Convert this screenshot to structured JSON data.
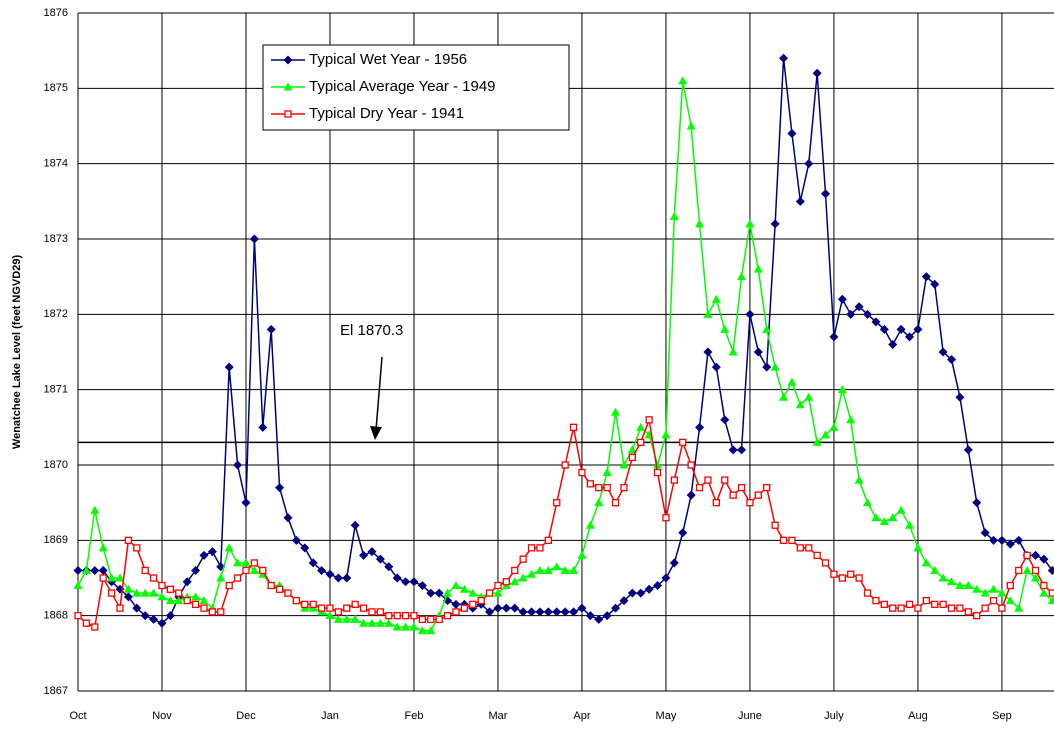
{
  "chart_data": {
    "type": "line",
    "y_label": "Wenatchee Lake Level (feet NGVD29)",
    "annotation": "El 1870.3",
    "hline": 1870.3,
    "xlim": [
      0,
      11.62
    ],
    "ylim": [
      1867,
      1876
    ],
    "yticks": [
      1867,
      1868,
      1869,
      1870,
      1871,
      1872,
      1873,
      1874,
      1875,
      1876
    ],
    "xticks": [
      {
        "value": 0,
        "label": "Oct"
      },
      {
        "value": 1,
        "label": "Nov"
      },
      {
        "value": 2,
        "label": "Dec"
      },
      {
        "value": 3,
        "label": "Jan"
      },
      {
        "value": 4,
        "label": "Feb"
      },
      {
        "value": 5,
        "label": "Mar"
      },
      {
        "value": 6,
        "label": "Apr"
      },
      {
        "value": 7,
        "label": "May"
      },
      {
        "value": 8,
        "label": "June"
      },
      {
        "value": 9,
        "label": "July"
      },
      {
        "value": 10,
        "label": "Aug"
      },
      {
        "value": 11,
        "label": "Sep"
      }
    ],
    "grid": true,
    "legend": "top-left",
    "x": [
      0,
      0.1,
      0.2,
      0.3,
      0.4,
      0.5,
      0.6,
      0.7,
      0.8,
      0.9,
      1,
      1.1,
      1.2,
      1.3,
      1.4,
      1.5,
      1.6,
      1.7,
      1.8,
      1.9,
      2,
      2.1,
      2.2,
      2.3,
      2.4,
      2.5,
      2.6,
      2.7,
      2.8,
      2.9,
      3,
      3.1,
      3.2,
      3.3,
      3.4,
      3.5,
      3.6,
      3.7,
      3.8,
      3.9,
      4,
      4.1,
      4.2,
      4.3,
      4.4,
      4.5,
      4.6,
      4.7,
      4.8,
      4.9,
      5,
      5.1,
      5.2,
      5.3,
      5.4,
      5.5,
      5.6,
      5.7,
      5.8,
      5.9,
      6,
      6.1,
      6.2,
      6.3,
      6.4,
      6.5,
      6.6,
      6.7,
      6.8,
      6.9,
      7,
      7.1,
      7.2,
      7.3,
      7.4,
      7.5,
      7.6,
      7.7,
      7.8,
      7.9,
      8,
      8.1,
      8.2,
      8.3,
      8.4,
      8.5,
      8.6,
      8.7,
      8.8,
      8.9,
      9,
      9.1,
      9.2,
      9.3,
      9.4,
      9.5,
      9.6,
      9.7,
      9.8,
      9.9,
      10,
      10.1,
      10.2,
      10.3,
      10.4,
      10.5,
      10.6,
      10.7,
      10.8,
      10.9,
      11,
      11.1,
      11.2,
      11.3,
      11.4,
      11.5,
      11.6
    ],
    "series": [
      {
        "name": "Typical Wet Year - 1956",
        "color": "#000080",
        "marker": "diamond",
        "values": [
          1868.6,
          1868.6,
          1868.6,
          1868.6,
          1868.45,
          1868.35,
          1868.25,
          1868.1,
          1868.0,
          1867.95,
          1867.9,
          1868.0,
          1868.25,
          1868.45,
          1868.6,
          1868.8,
          1868.85,
          1868.65,
          1871.3,
          1870.0,
          1869.5,
          1873.0,
          1870.5,
          1871.8,
          1869.7,
          1869.3,
          1869.0,
          1868.9,
          1868.7,
          1868.6,
          1868.55,
          1868.5,
          1868.5,
          1869.2,
          1868.8,
          1868.85,
          1868.75,
          1868.65,
          1868.5,
          1868.45,
          1868.45,
          1868.4,
          1868.3,
          1868.3,
          1868.2,
          1868.15,
          1868.15,
          1868.1,
          1868.15,
          1868.05,
          1868.1,
          1868.1,
          1868.1,
          1868.05,
          1868.05,
          1868.05,
          1868.05,
          1868.05,
          1868.05,
          1868.05,
          1868.1,
          1868.0,
          1867.95,
          1868.0,
          1868.1,
          1868.2,
          1868.3,
          1868.3,
          1868.35,
          1868.4,
          1868.5,
          1868.7,
          1869.1,
          1869.6,
          1870.5,
          1871.5,
          1871.3,
          1870.6,
          1870.2,
          1870.2,
          1872.0,
          1871.5,
          1871.3,
          1873.2,
          1875.4,
          1874.4,
          1873.5,
          1874.0,
          1875.2,
          1873.6,
          1871.7,
          1872.2,
          1872.0,
          1872.1,
          1872.0,
          1871.9,
          1871.8,
          1871.6,
          1871.8,
          1871.7,
          1871.8,
          1872.5,
          1872.4,
          1871.5,
          1871.4,
          1870.9,
          1870.2,
          1869.5,
          1869.1,
          1869.0,
          1869.0,
          1868.95,
          1869.0,
          1868.8,
          1868.8,
          1868.75,
          1868.6
        ]
      },
      {
        "name": "Typical Average Year - 1949",
        "color": "#00ff00",
        "marker": "triangle",
        "values": [
          1868.4,
          1868.6,
          1869.4,
          1868.9,
          1868.5,
          1868.5,
          1868.35,
          1868.3,
          1868.3,
          1868.3,
          1868.25,
          1868.2,
          1868.2,
          1868.25,
          1868.25,
          1868.2,
          1868.1,
          1868.5,
          1868.9,
          1868.7,
          1868.7,
          1868.6,
          1868.55,
          1868.4,
          1868.4,
          1868.3,
          1868.2,
          1868.1,
          1868.1,
          1868.05,
          1868.0,
          1867.95,
          1867.95,
          1867.95,
          1867.9,
          1867.9,
          1867.9,
          1867.9,
          1867.85,
          1867.85,
          1867.85,
          1867.8,
          1867.8,
          1868.0,
          1868.3,
          1868.4,
          1868.35,
          1868.3,
          1868.25,
          1868.3,
          1868.3,
          1868.4,
          1868.45,
          1868.5,
          1868.55,
          1868.6,
          1868.6,
          1868.65,
          1868.6,
          1868.6,
          1868.8,
          1869.2,
          1869.5,
          1869.9,
          1870.7,
          1870.0,
          1870.2,
          1870.5,
          1870.4,
          1870.0,
          1870.4,
          1873.3,
          1875.1,
          1874.5,
          1873.2,
          1872.0,
          1872.2,
          1871.8,
          1871.5,
          1872.5,
          1873.2,
          1872.6,
          1871.8,
          1871.3,
          1870.9,
          1871.1,
          1870.8,
          1870.9,
          1870.3,
          1870.4,
          1870.5,
          1871.0,
          1870.6,
          1869.8,
          1869.5,
          1869.3,
          1869.25,
          1869.3,
          1869.4,
          1869.2,
          1868.9,
          1868.7,
          1868.6,
          1868.5,
          1868.45,
          1868.4,
          1868.4,
          1868.35,
          1868.3,
          1868.35,
          1868.3,
          1868.2,
          1868.1,
          1868.6,
          1868.5,
          1868.3,
          1868.2
        ]
      },
      {
        "name": "Typical Dry Year - 1941",
        "color": "#ff0000",
        "marker": "square",
        "values": [
          1868.0,
          1867.9,
          1867.85,
          1868.5,
          1868.3,
          1868.1,
          1869.0,
          1868.9,
          1868.6,
          1868.5,
          1868.4,
          1868.35,
          1868.3,
          1868.2,
          1868.15,
          1868.1,
          1868.05,
          1868.05,
          1868.4,
          1868.5,
          1868.6,
          1868.7,
          1868.6,
          1868.4,
          1868.35,
          1868.3,
          1868.2,
          1868.15,
          1868.15,
          1868.1,
          1868.1,
          1868.05,
          1868.1,
          1868.15,
          1868.1,
          1868.05,
          1868.05,
          1868.0,
          1868.0,
          1868.0,
          1868.0,
          1867.95,
          1867.95,
          1867.95,
          1868.0,
          1868.05,
          1868.1,
          1868.15,
          1868.2,
          1868.3,
          1868.4,
          1868.45,
          1868.6,
          1868.75,
          1868.9,
          1868.9,
          1869.0,
          1869.5,
          1870.0,
          1870.5,
          1869.9,
          1869.75,
          1869.7,
          1869.7,
          1869.5,
          1869.7,
          1870.1,
          1870.3,
          1870.6,
          1869.9,
          1869.3,
          1869.8,
          1870.3,
          1870.0,
          1869.7,
          1869.8,
          1869.5,
          1869.8,
          1869.6,
          1869.7,
          1869.5,
          1869.6,
          1869.7,
          1869.2,
          1869.0,
          1869.0,
          1868.9,
          1868.9,
          1868.8,
          1868.7,
          1868.55,
          1868.5,
          1868.55,
          1868.5,
          1868.3,
          1868.2,
          1868.15,
          1868.1,
          1868.1,
          1868.15,
          1868.1,
          1868.2,
          1868.15,
          1868.15,
          1868.1,
          1868.1,
          1868.05,
          1868.0,
          1868.1,
          1868.2,
          1868.1,
          1868.4,
          1868.6,
          1868.8,
          1868.6,
          1868.4,
          1868.3
        ]
      }
    ]
  }
}
